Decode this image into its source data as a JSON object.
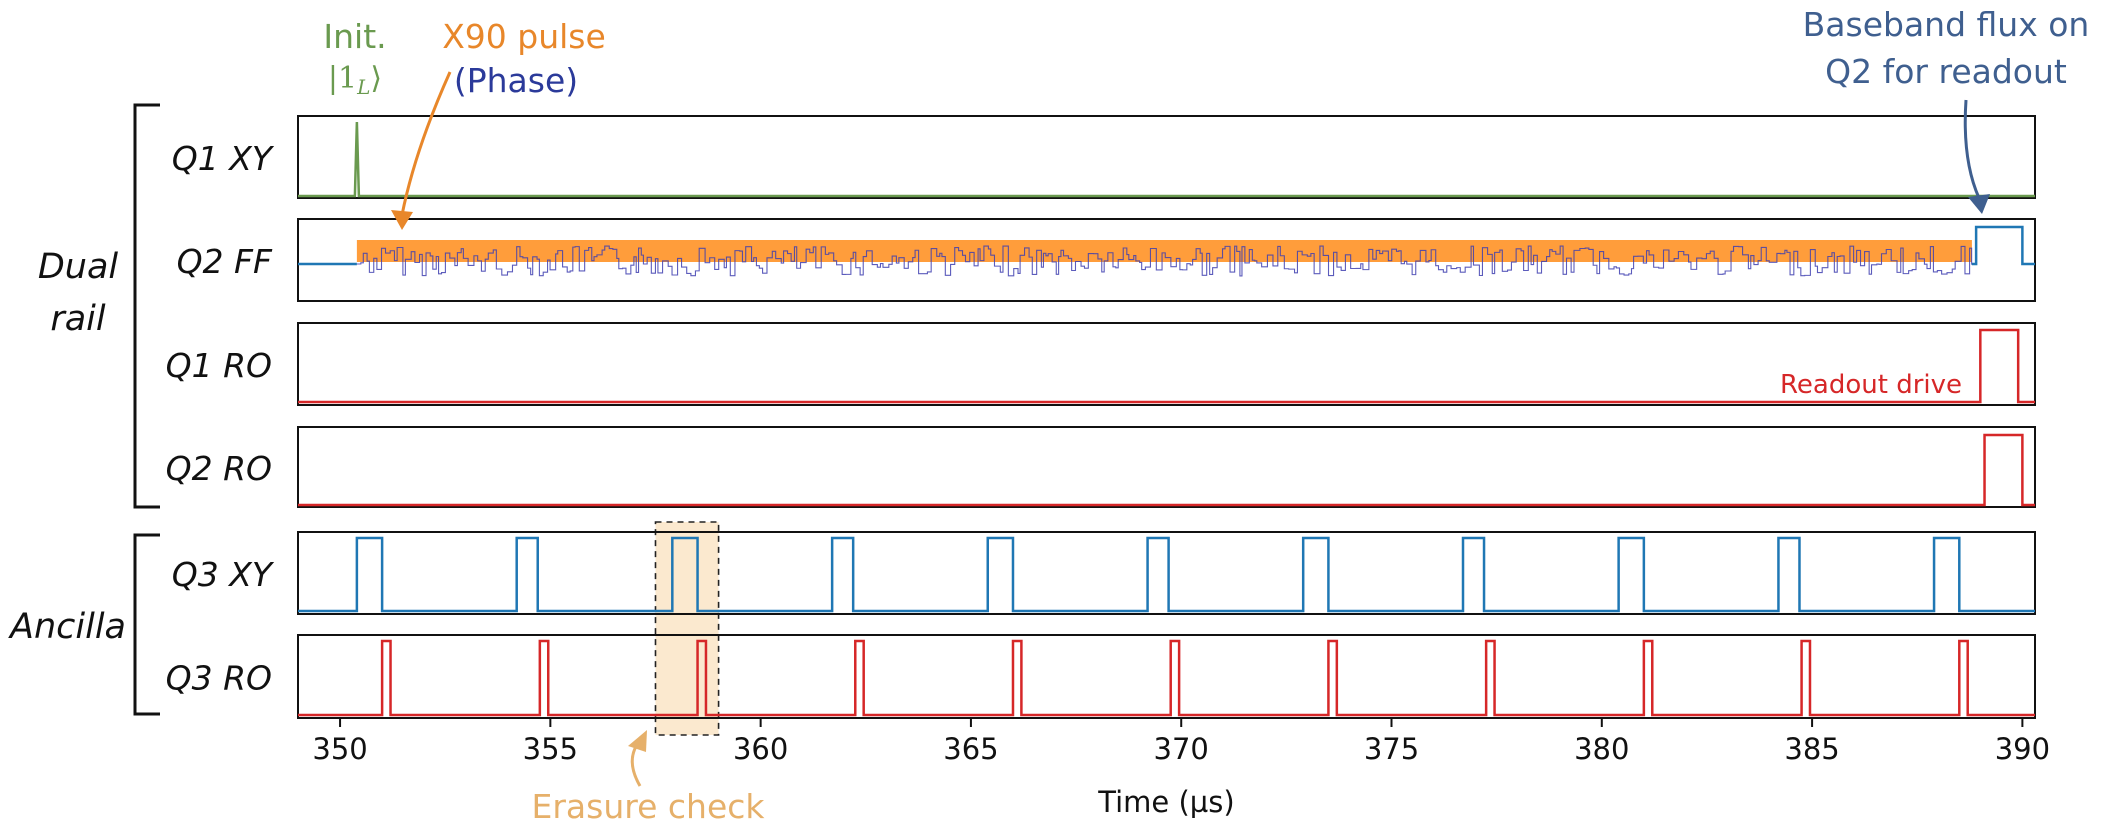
{
  "chart_data": {
    "type": "line",
    "xlabel": "Time (µs)",
    "xlim": [
      349,
      390.3
    ],
    "xticks": [
      350,
      355,
      360,
      365,
      370,
      375,
      380,
      385,
      390
    ],
    "groups": [
      {
        "label": "Dual rail",
        "line1": "Dual",
        "line2": "rail"
      },
      {
        "label": "Ancilla"
      }
    ],
    "channels": [
      {
        "name": "Q1 XY",
        "color": "#6a9a4f",
        "kind": "spike",
        "events": [
          350.4
        ]
      },
      {
        "name": "Q2 FF",
        "color": "#1f77b4",
        "kind": "flux",
        "noise_start": 350.4,
        "noise_end": 388.8,
        "noise_color": "#4040b0",
        "band_color": "#ff8c19",
        "baseband": [
          388.9,
          390.0
        ]
      },
      {
        "name": "Q1 RO",
        "color": "#d62728",
        "kind": "pulses",
        "pulses": [
          [
            389.0,
            389.9
          ]
        ]
      },
      {
        "name": "Q2 RO",
        "color": "#d62728",
        "kind": "pulses",
        "pulses": [
          [
            389.1,
            390.0
          ]
        ]
      },
      {
        "name": "Q3 XY",
        "color": "#1f77b4",
        "kind": "pulses",
        "pulses": [
          [
            350.4,
            351.0
          ],
          [
            354.2,
            354.7
          ],
          [
            357.9,
            358.5
          ],
          [
            361.7,
            362.2
          ],
          [
            365.4,
            366.0
          ],
          [
            369.2,
            369.7
          ],
          [
            372.9,
            373.5
          ],
          [
            376.7,
            377.2
          ],
          [
            380.4,
            381.0
          ],
          [
            384.2,
            384.7
          ],
          [
            387.9,
            388.5
          ]
        ]
      },
      {
        "name": "Q3 RO",
        "color": "#d62728",
        "kind": "pulses",
        "pulses": [
          [
            351.0,
            351.2
          ],
          [
            354.75,
            354.95
          ],
          [
            358.5,
            358.7
          ],
          [
            362.25,
            362.45
          ],
          [
            366.0,
            366.2
          ],
          [
            369.75,
            369.95
          ],
          [
            373.5,
            373.7
          ],
          [
            377.25,
            377.45
          ],
          [
            381.0,
            381.2
          ],
          [
            384.75,
            384.95
          ],
          [
            388.5,
            388.7
          ]
        ]
      }
    ],
    "annotations": {
      "init": {
        "text": "Init.",
        "math": "|1",
        "sub": "L",
        "close": "⟩",
        "color": "#6a9a4f"
      },
      "x90": {
        "text": "X90 pulse",
        "color": "#e8872a",
        "sub": "(Phase)",
        "sub_color": "#2b3a9a"
      },
      "baseband": {
        "line1": "Baseband flux on",
        "line2": "Q2 for readout",
        "color": "#3f5f8f"
      },
      "readout": {
        "text": "Readout drive",
        "color": "#d62728"
      },
      "erasure": {
        "text": "Erasure check",
        "color": "#e6b06a",
        "x_range": [
          357.5,
          359.0
        ],
        "box_fill": "#fbe9cf"
      }
    }
  }
}
